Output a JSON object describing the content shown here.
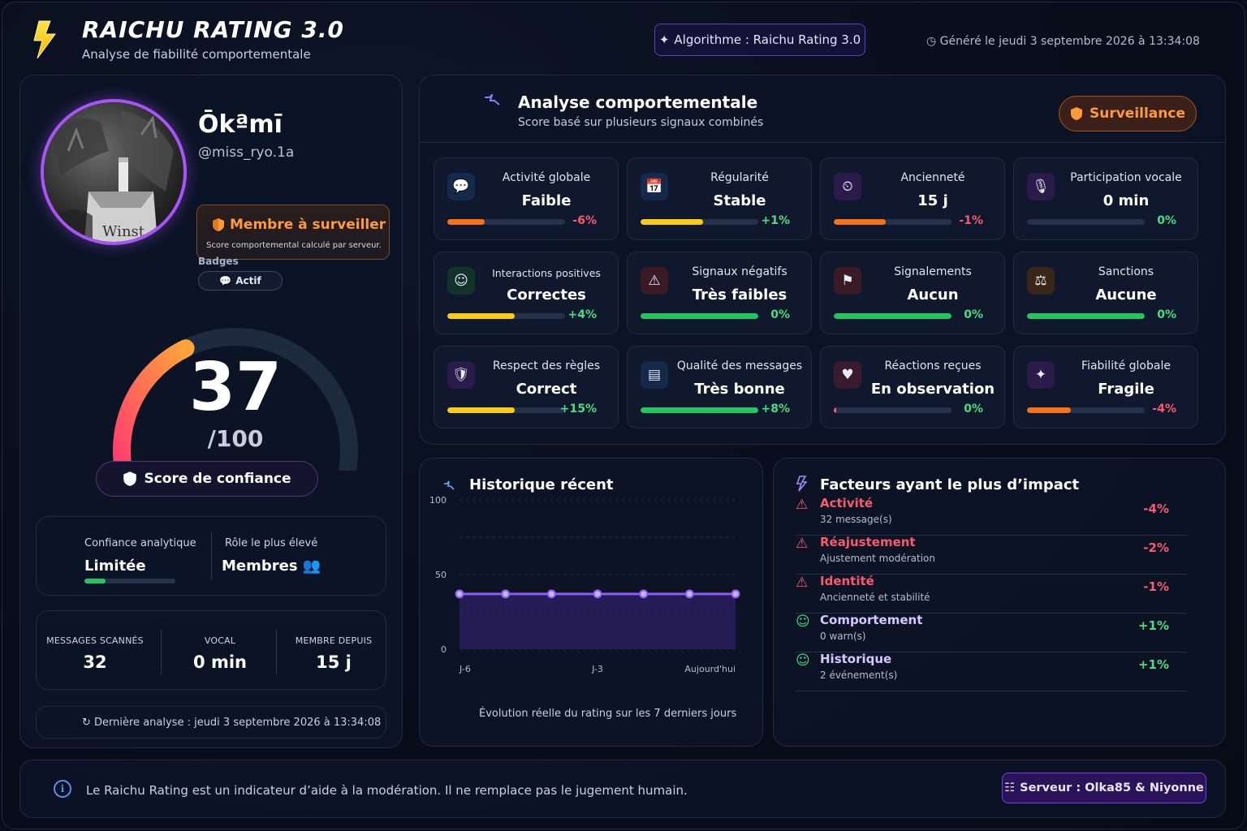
{
  "header": {
    "title": "RAICHU RATING 3.0",
    "subtitle": "Analyse de fiabilité comportementale",
    "algorithm": "Algorithme : Raichu Rating 3.0",
    "generated": "Généré le jeudi 3 septembre 2026 à 13:34:08"
  },
  "profile": {
    "name": "Ōkªmī",
    "handle": "@miss_ryo.1a",
    "status_title": "Membre à surveiller",
    "status_sub": "Score comportemental calculé par serveur.",
    "badges_label": "Badges",
    "badge": "Actif",
    "avatar_text": "Winst",
    "score": "37",
    "score_value": 37,
    "score_max": "/100",
    "score_label": "Score de confiance",
    "confidence_label": "Confiance analytique",
    "confidence_value": "Limitée",
    "confidence_level": 0.23,
    "role_label": "Rôle le plus élevé",
    "role_value": "Membres 👥",
    "stats": [
      {
        "label": "MESSAGES SCANNÉS",
        "value": "32"
      },
      {
        "label": "VOCAL",
        "value": "0 min"
      },
      {
        "label": "MEMBRE DEPUIS",
        "value": "15 j"
      }
    ],
    "last_analysis": "↻ Dernière analyse : jeudi 3 septembre 2026 à 13:34:08"
  },
  "analysis": {
    "title": "Analyse comportementale",
    "subtitle": "Score basé sur plusieurs signaux combinés",
    "status": "Surveillance",
    "metrics": [
      {
        "label": "Activité globale",
        "value": "Faible",
        "delta": "-6%",
        "fill": 0.32,
        "bar_color": "#f97316",
        "delta_color": "#fb5a6e",
        "icon": "💬",
        "icon_name": "chat-bubble-icon",
        "icon_bg": "#15294a"
      },
      {
        "label": "Régularité",
        "value": "Stable",
        "delta": "+1%",
        "fill": 0.53,
        "bar_color": "#facc15",
        "delta_color": "#4ade80",
        "icon": "📅",
        "icon_name": "calendar-icon",
        "icon_bg": "#15294a"
      },
      {
        "label": "Ancienneté",
        "value": "15 j",
        "delta": "-1%",
        "fill": 0.44,
        "bar_color": "#f97316",
        "delta_color": "#fb5a6e",
        "icon": "⏲",
        "icon_name": "clock-icon",
        "icon_bg": "#2a1b4a"
      },
      {
        "label": "Participation vocale",
        "value": "0 min",
        "delta": "0%",
        "fill": 0,
        "bar_color": "#22c55e",
        "delta_color": "#4ade80",
        "icon": "🎙",
        "icon_name": "microphone-icon",
        "icon_bg": "#2a1b4a"
      },
      {
        "label": "Interactions positives",
        "value": "Correctes",
        "delta": "+4%",
        "fill": 0.57,
        "bar_color": "#facc15",
        "delta_color": "#4ade80",
        "icon": "☺",
        "icon_name": "smile-icon",
        "icon_bg": "#13322a",
        "small": true
      },
      {
        "label": "Signaux négatifs",
        "value": "Très faibles",
        "delta": "0%",
        "fill": 1,
        "bar_color": "#22c55e",
        "delta_color": "#4ade80",
        "icon": "⚠",
        "icon_name": "warning-icon",
        "icon_bg": "#3a1a24"
      },
      {
        "label": "Signalements",
        "value": "Aucun",
        "delta": "0%",
        "fill": 1,
        "bar_color": "#22c55e",
        "delta_color": "#4ade80",
        "icon": "⚑",
        "icon_name": "flag-icon",
        "icon_bg": "#3a1a24"
      },
      {
        "label": "Sanctions",
        "value": "Aucune",
        "delta": "0%",
        "fill": 1,
        "bar_color": "#22c55e",
        "delta_color": "#4ade80",
        "icon": "⚖",
        "icon_name": "scales-icon",
        "icon_bg": "#3a2618"
      },
      {
        "label": "Respect des règles",
        "value": "Correct",
        "delta": "+15%",
        "fill": 0.57,
        "bar_color": "#facc15",
        "delta_color": "#4ade80",
        "icon": "🛡",
        "icon_name": "shield-icon",
        "icon_bg": "#2a1b4a"
      },
      {
        "label": "Qualité des messages",
        "value": "Très bonne",
        "delta": "+8%",
        "fill": 1,
        "bar_color": "#22c55e",
        "delta_color": "#4ade80",
        "icon": "▤",
        "icon_name": "document-icon",
        "icon_bg": "#15294a"
      },
      {
        "label": "Réactions reçues",
        "value": "En observation",
        "delta": "0%",
        "fill": 0.02,
        "bar_color": "#fb5a6e",
        "delta_color": "#4ade80",
        "icon": "♥",
        "icon_name": "heart-icon",
        "icon_bg": "#3a1a2e"
      },
      {
        "label": "Fiabilité globale",
        "value": "Fragile",
        "delta": "-4%",
        "fill": 0.37,
        "bar_color": "#f97316",
        "delta_color": "#fb5a6e",
        "icon": "✦",
        "icon_name": "sparkle-icon",
        "icon_bg": "#2a1b4a"
      }
    ]
  },
  "history": {
    "title": "Historique récent",
    "caption": "Évolution réelle du rating sur les 7 derniers jours",
    "chart_data": {
      "type": "line",
      "x": [
        "J-6",
        "J-5",
        "J-4",
        "J-3",
        "J-2",
        "J-1",
        "Aujourd'hui"
      ],
      "x_tick_labels": [
        "J-6",
        "J-3",
        "Aujourd'hui"
      ],
      "values": [
        37,
        37,
        37,
        37,
        37,
        37,
        37
      ],
      "y_ticks": [
        "0",
        "50",
        "100"
      ],
      "ylim": [
        0,
        100
      ],
      "grid": true,
      "line_color": "#8b5cf6"
    }
  },
  "factors": {
    "title": "Facteurs ayant le plus d’impact",
    "items": [
      {
        "icon": "⚠",
        "icon_name": "warning-icon",
        "name": "Activité",
        "sub": "32 message(s)",
        "delta": "-4%",
        "color": "#fb5a6e",
        "delta_color": "#fb5a6e"
      },
      {
        "icon": "⚠",
        "icon_name": "warning-icon",
        "name": "Réajustement",
        "sub": "Ajustement modération",
        "delta": "-2%",
        "color": "#fb5a6e",
        "delta_color": "#fb5a6e"
      },
      {
        "icon": "⚠",
        "icon_name": "warning-icon",
        "name": "Identité",
        "sub": "Ancienneté et stabilité",
        "delta": "-1%",
        "color": "#fb5a6e",
        "delta_color": "#fb5a6e"
      },
      {
        "icon": "☺",
        "icon_name": "smile-icon",
        "name": "Comportement",
        "sub": "0 warn(s)",
        "delta": "+1%",
        "color": "#d6c8ff",
        "delta_color": "#4ade80"
      },
      {
        "icon": "☺",
        "icon_name": "smile-icon",
        "name": "Historique",
        "sub": "2 événement(s)",
        "delta": "+1%",
        "color": "#d6c8ff",
        "delta_color": "#4ade80"
      }
    ]
  },
  "footer": {
    "disclaimer": "Le Raichu Rating est un indicateur d’aide à la modération. Il ne remplace pas le jugement humain.",
    "server": "Serveur : Olka85 & Niyonne"
  }
}
